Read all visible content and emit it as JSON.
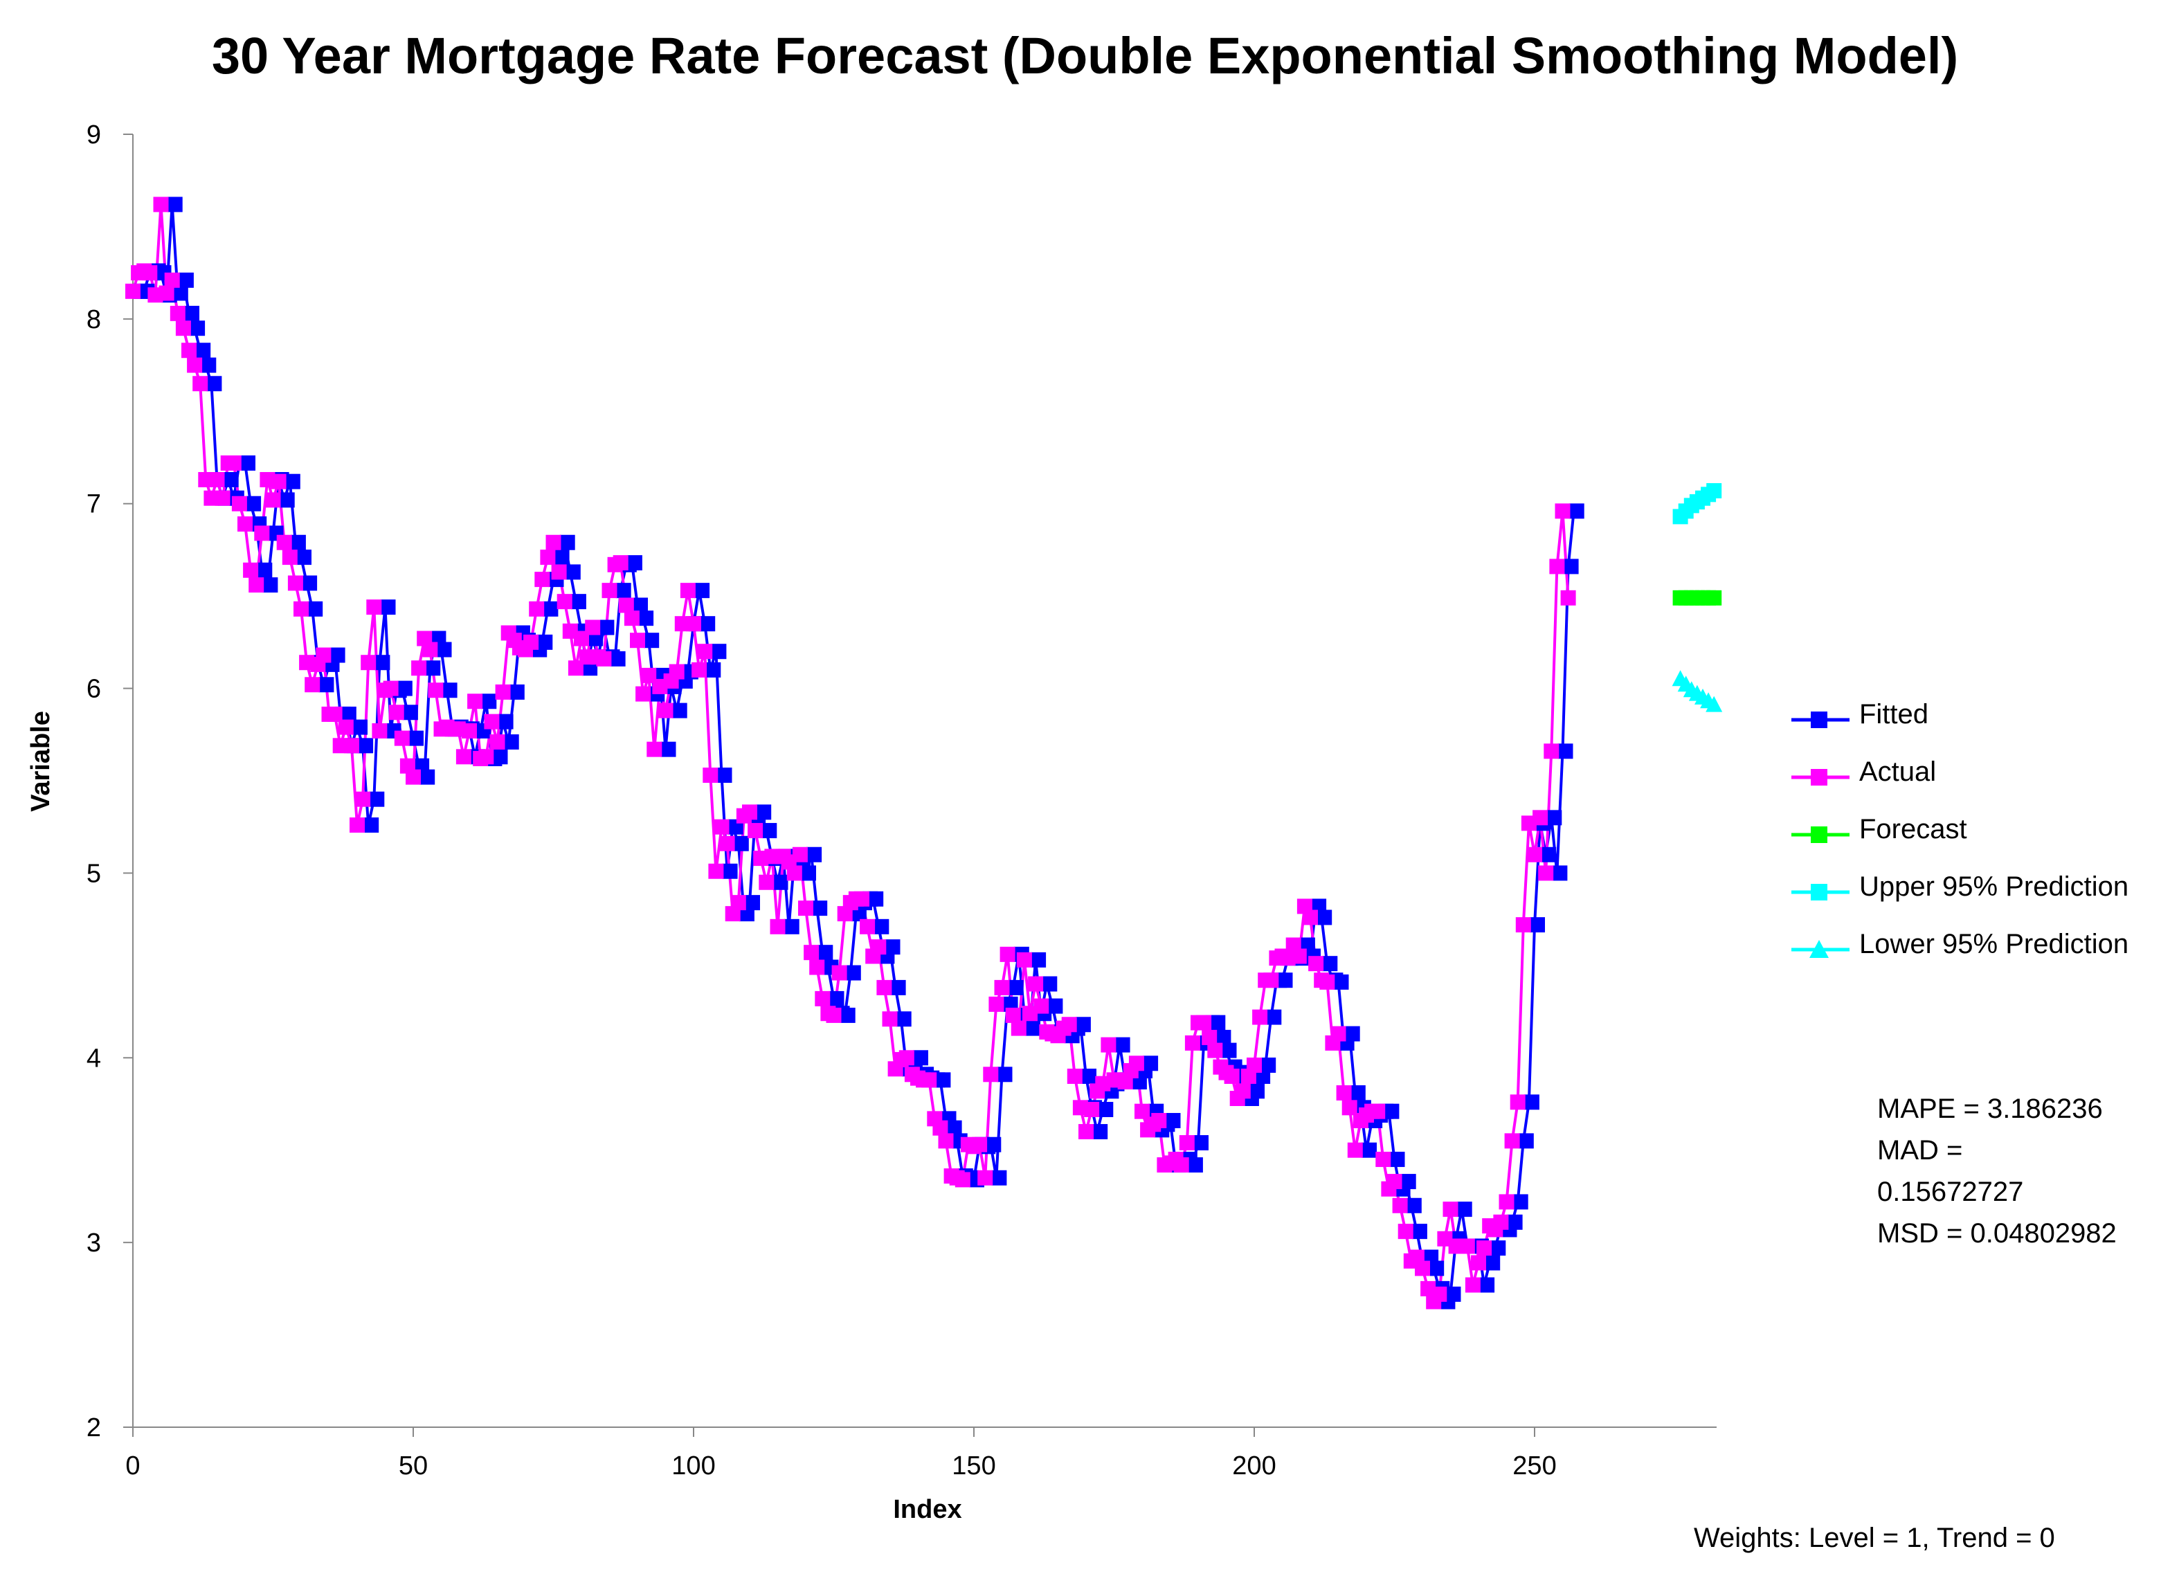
{
  "chart_data": {
    "type": "line",
    "title": "30 Year Mortgage Rate Forecast (Double Exponential Smoothing Model)",
    "xlabel": "Index",
    "ylabel": "Variable",
    "xlim": [
      0,
      282
    ],
    "ylim": [
      2,
      9
    ],
    "xticks": [
      "0",
      "50",
      "100",
      "150",
      "200",
      "250"
    ],
    "yticks": [
      "2",
      "3",
      "4",
      "5",
      "6",
      "7",
      "8",
      "9"
    ],
    "grid": false,
    "legend_position": "right",
    "series": [
      {
        "name": "Fitted",
        "color": "#0000FF",
        "marker": "square",
        "values": [
          8.15,
          8.15,
          8.25,
          8.26,
          8.25,
          8.13,
          8.62,
          8.14,
          8.21,
          8.03,
          7.95,
          7.83,
          7.75,
          7.65,
          7.13,
          7.03,
          7.13,
          7.03,
          7.22,
          7.22,
          7.0,
          6.89,
          6.64,
          6.56,
          6.84,
          7.13,
          7.02,
          7.12,
          6.79,
          6.71,
          6.57,
          6.43,
          6.14,
          6.02,
          6.13,
          6.18,
          5.86,
          5.86,
          5.69,
          5.79,
          5.69,
          5.26,
          5.4,
          6.14,
          6.44,
          5.77,
          5.99,
          6.0,
          5.87,
          5.73,
          5.58,
          5.52,
          6.11,
          6.27,
          6.21,
          5.99,
          5.78,
          5.79,
          5.78,
          5.78,
          5.63,
          5.77,
          5.93,
          5.62,
          5.63,
          5.82,
          5.71,
          5.98,
          6.3,
          6.26,
          6.22,
          6.21,
          6.25,
          6.43,
          6.59,
          6.71,
          6.79,
          6.63,
          6.47,
          6.31,
          6.11,
          6.27,
          6.17,
          6.33,
          6.17,
          6.16,
          6.53,
          6.67,
          6.68,
          6.45,
          6.38,
          6.26,
          5.97,
          6.07,
          5.67,
          6.01,
          5.88,
          6.04,
          6.09,
          6.35,
          6.53,
          6.35,
          6.1,
          6.2,
          5.53,
          5.01,
          5.25,
          5.16,
          4.78,
          4.84,
          5.31,
          5.33,
          5.23,
          5.08,
          4.95,
          5.09,
          4.71,
          5.09,
          5.06,
          5.0,
          5.1,
          4.81,
          4.57,
          4.49,
          4.32,
          4.24,
          4.23,
          4.46,
          4.78,
          4.84,
          4.86,
          4.86,
          4.71,
          4.55,
          4.6,
          4.38,
          4.21,
          3.94,
          3.99,
          4.0,
          3.91,
          3.89,
          3.88,
          3.88,
          3.67,
          3.62,
          3.55,
          3.36,
          3.35,
          3.34,
          3.53,
          3.52,
          3.53,
          3.35,
          3.91,
          4.29,
          4.38,
          4.56,
          4.23,
          4.16,
          4.53,
          4.24,
          4.4,
          4.28,
          4.14,
          4.13,
          4.12,
          4.16,
          4.18,
          3.9,
          3.73,
          3.6,
          3.72,
          3.82,
          3.86,
          4.07,
          3.88,
          3.88,
          3.87,
          3.93,
          3.97,
          3.71,
          3.61,
          3.64,
          3.66,
          3.42,
          3.43,
          3.45,
          3.42,
          3.54,
          4.08,
          4.19,
          4.19,
          4.11,
          4.04,
          3.95,
          3.92,
          3.9,
          3.78,
          3.82,
          3.9,
          3.96,
          4.22,
          4.42,
          4.42,
          4.54,
          4.55,
          4.54,
          4.61,
          4.55,
          4.82,
          4.76,
          4.51,
          4.42,
          4.41,
          4.08,
          4.13,
          3.81,
          3.73,
          3.5,
          3.66,
          3.69,
          3.71,
          3.71,
          3.45,
          3.29,
          3.33,
          3.2,
          3.06,
          2.9,
          2.92,
          2.86,
          2.75,
          2.68,
          2.72,
          3.02,
          3.18,
          2.98,
          2.98,
          2.98,
          2.77,
          2.89,
          2.97,
          3.09,
          3.07,
          3.11,
          3.22,
          3.55,
          3.76,
          4.72,
          5.27,
          5.1,
          5.3,
          5.0,
          5.66,
          6.66,
          6.96
        ]
      },
      {
        "name": "Actual",
        "color": "#FF00FF",
        "marker": "square",
        "values": [
          8.15,
          8.25,
          8.26,
          8.25,
          8.13,
          8.62,
          8.14,
          8.21,
          8.03,
          7.95,
          7.83,
          7.75,
          7.65,
          7.13,
          7.03,
          7.13,
          7.03,
          7.22,
          7.22,
          7.0,
          6.89,
          6.64,
          6.56,
          6.84,
          7.13,
          7.02,
          7.12,
          6.79,
          6.71,
          6.57,
          6.43,
          6.14,
          6.02,
          6.13,
          6.18,
          5.86,
          5.86,
          5.69,
          5.79,
          5.69,
          5.26,
          5.4,
          6.14,
          6.44,
          5.77,
          5.99,
          6.0,
          5.87,
          5.73,
          5.58,
          5.52,
          6.11,
          6.27,
          6.21,
          5.99,
          5.78,
          5.79,
          5.78,
          5.78,
          5.63,
          5.77,
          5.93,
          5.62,
          5.63,
          5.82,
          5.71,
          5.98,
          6.3,
          6.26,
          6.22,
          6.21,
          6.25,
          6.43,
          6.59,
          6.71,
          6.79,
          6.63,
          6.47,
          6.31,
          6.11,
          6.27,
          6.17,
          6.33,
          6.17,
          6.16,
          6.53,
          6.67,
          6.68,
          6.45,
          6.38,
          6.26,
          5.97,
          6.07,
          5.67,
          6.01,
          5.88,
          6.04,
          6.09,
          6.35,
          6.53,
          6.35,
          6.1,
          6.2,
          5.53,
          5.01,
          5.25,
          5.16,
          4.78,
          4.84,
          5.31,
          5.33,
          5.23,
          5.08,
          4.95,
          5.09,
          4.71,
          5.09,
          5.06,
          5.0,
          5.1,
          4.81,
          4.57,
          4.49,
          4.32,
          4.24,
          4.23,
          4.46,
          4.78,
          4.84,
          4.86,
          4.86,
          4.71,
          4.55,
          4.6,
          4.38,
          4.21,
          3.94,
          3.99,
          4.0,
          3.91,
          3.89,
          3.88,
          3.88,
          3.67,
          3.62,
          3.55,
          3.36,
          3.35,
          3.34,
          3.53,
          3.52,
          3.53,
          3.35,
          3.91,
          4.29,
          4.38,
          4.56,
          4.23,
          4.16,
          4.53,
          4.24,
          4.4,
          4.28,
          4.14,
          4.13,
          4.12,
          4.16,
          4.18,
          3.9,
          3.73,
          3.6,
          3.72,
          3.82,
          3.86,
          4.07,
          3.88,
          3.88,
          3.87,
          3.93,
          3.97,
          3.71,
          3.61,
          3.64,
          3.66,
          3.42,
          3.43,
          3.45,
          3.42,
          3.54,
          4.08,
          4.19,
          4.19,
          4.11,
          4.04,
          3.95,
          3.92,
          3.9,
          3.78,
          3.82,
          3.9,
          3.96,
          4.22,
          4.42,
          4.42,
          4.54,
          4.55,
          4.54,
          4.61,
          4.55,
          4.82,
          4.76,
          4.51,
          4.42,
          4.41,
          4.08,
          4.13,
          3.81,
          3.73,
          3.5,
          3.66,
          3.69,
          3.71,
          3.71,
          3.45,
          3.29,
          3.33,
          3.2,
          3.06,
          2.9,
          2.92,
          2.86,
          2.75,
          2.68,
          2.72,
          3.02,
          3.18,
          2.98,
          2.98,
          2.98,
          2.77,
          2.89,
          2.97,
          3.09,
          3.07,
          3.11,
          3.22,
          3.55,
          3.76,
          4.72,
          5.27,
          5.1,
          5.3,
          5.0,
          5.66,
          6.66,
          6.96,
          6.49
        ]
      },
      {
        "name": "Forecast",
        "color": "#00FF00",
        "marker": "square",
        "x": [
          276,
          277,
          278,
          279,
          280,
          281,
          282
        ],
        "values": [
          6.49,
          6.49,
          6.49,
          6.49,
          6.49,
          6.49,
          6.49
        ]
      },
      {
        "name": "Upper 95% Prediction",
        "color": "#00FFFF",
        "marker": "square",
        "x": [
          276,
          277,
          278,
          279,
          280,
          281,
          282
        ],
        "values": [
          6.93,
          6.96,
          6.99,
          7.01,
          7.03,
          7.05,
          7.07
        ]
      },
      {
        "name": "Lower 95% Prediction",
        "color": "#00FFFF",
        "marker": "triangle",
        "x": [
          276,
          277,
          278,
          279,
          280,
          281,
          282
        ],
        "values": [
          6.05,
          6.02,
          5.99,
          5.97,
          5.95,
          5.93,
          5.91
        ]
      }
    ]
  },
  "stats": {
    "mape": "MAPE = 3.186236",
    "mad_line1": "MAD =",
    "mad_line2": "0.15672727",
    "msd": "MSD = 0.04802982"
  },
  "weights": "Weights: Level = 1,  Trend = 0"
}
